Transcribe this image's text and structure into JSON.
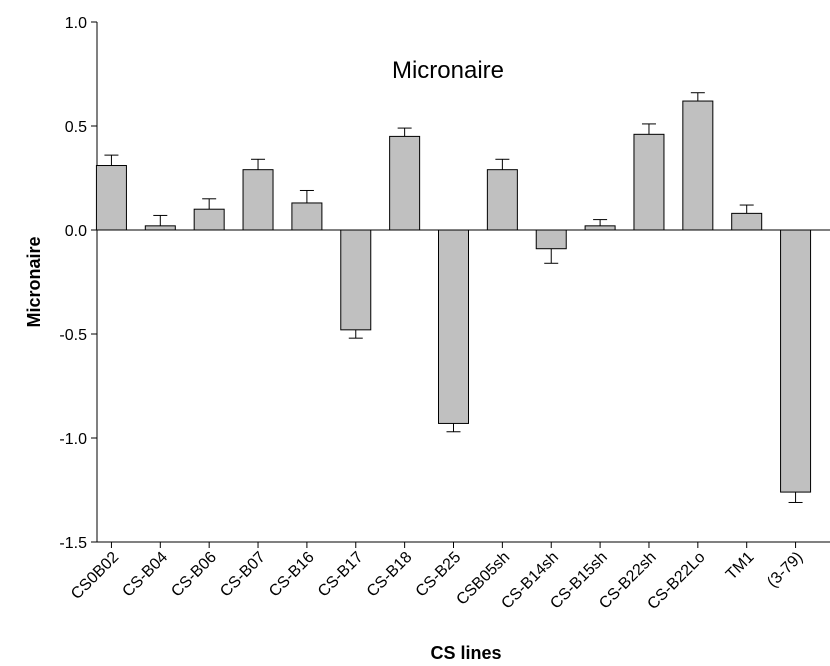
{
  "chart_data": {
    "type": "bar",
    "title": "Micronaire",
    "xlabel": "CS lines",
    "ylabel": "Micronaire",
    "ylim": [
      -1.5,
      1.0
    ],
    "yticks": [
      "-1.5",
      "-1.0",
      "-0.5",
      "0.0",
      "0.5",
      "1.0"
    ],
    "grid": false,
    "bar_color": "#c0c0c0",
    "categories": [
      "CS0B02",
      "CS-B04",
      "CS-B06",
      "CS-B07",
      "CS-B16",
      "CS-B17",
      "CS-B18",
      "CS-B25",
      "CSB05sh",
      "CS-B14sh",
      "CS-B15sh",
      "CS-B22sh",
      "CS-B22Lo",
      "TM1",
      "(3-79)"
    ],
    "values": [
      0.31,
      0.02,
      0.1,
      0.29,
      0.13,
      -0.48,
      0.45,
      -0.93,
      0.29,
      -0.09,
      0.02,
      0.46,
      0.62,
      0.08,
      -1.26
    ],
    "errors": [
      0.05,
      0.05,
      0.05,
      0.05,
      0.06,
      0.04,
      0.04,
      0.04,
      0.05,
      0.07,
      0.03,
      0.05,
      0.04,
      0.04,
      0.05
    ]
  }
}
